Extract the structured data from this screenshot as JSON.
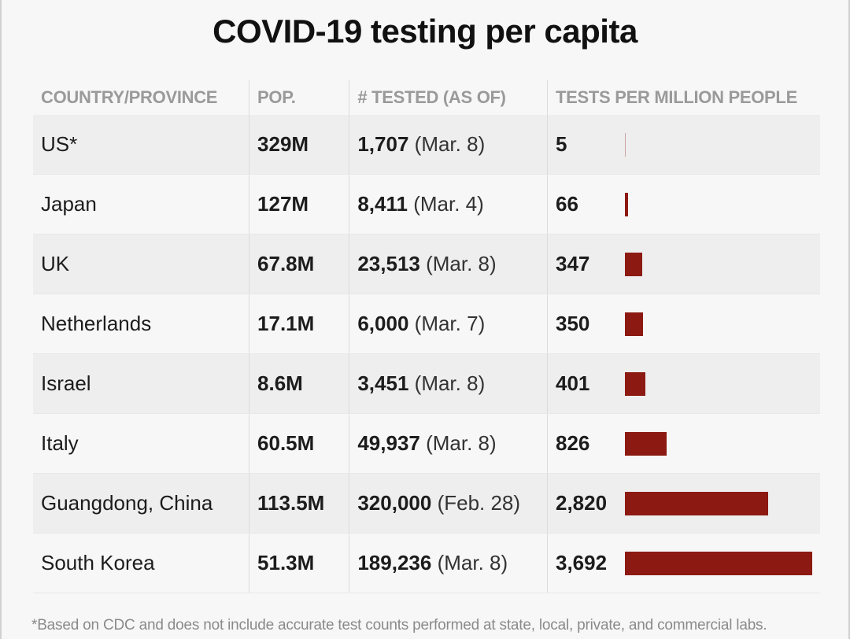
{
  "title": "COVID-19 testing per capita",
  "headers": [
    "COUNTRY/PROVINCE",
    "POP.",
    "# TESTED (AS OF)",
    "TESTS PER MILLION PEOPLE"
  ],
  "rows": [
    {
      "country": "US*",
      "pop": "329M",
      "tested": "1,707",
      "date": "(Mar. 8)",
      "per_million": "5"
    },
    {
      "country": "Japan",
      "pop": "127M",
      "tested": "8,411",
      "date": "(Mar. 4)",
      "per_million": "66"
    },
    {
      "country": "UK",
      "pop": "67.8M",
      "tested": "23,513",
      "date": "(Mar. 8)",
      "per_million": "347"
    },
    {
      "country": "Netherlands",
      "pop": "17.1M",
      "tested": "6,000",
      "date": "(Mar. 7)",
      "per_million": "350"
    },
    {
      "country": "Israel",
      "pop": "8.6M",
      "tested": "3,451",
      "date": "(Mar. 8)",
      "per_million": "401"
    },
    {
      "country": "Italy",
      "pop": "60.5M",
      "tested": "49,937",
      "date": "(Mar. 8)",
      "per_million": "826"
    },
    {
      "country": "Guangdong, China",
      "pop": "113.5M",
      "tested": "320,000",
      "date": "(Feb. 28)",
      "per_million": "2,820"
    },
    {
      "country": "South Korea",
      "pop": "51.3M",
      "tested": "189,236",
      "date": "(Mar. 8)",
      "per_million": "3,692"
    }
  ],
  "footnote": "*Based on CDC and does not include accurate test counts performed at state, local, private, and commercial labs.",
  "bar_color": "#8c1a12",
  "chart_data": {
    "type": "table",
    "title": "COVID-19 testing per capita",
    "categories": [
      "US*",
      "Japan",
      "UK",
      "Netherlands",
      "Israel",
      "Italy",
      "Guangdong, China",
      "South Korea"
    ],
    "series": [
      {
        "name": "Tests per million people",
        "values": [
          5,
          66,
          347,
          350,
          401,
          826,
          2820,
          3692
        ]
      }
    ],
    "xlabel": "",
    "ylabel": "Tests per million people",
    "ylim": [
      0,
      3692
    ]
  }
}
